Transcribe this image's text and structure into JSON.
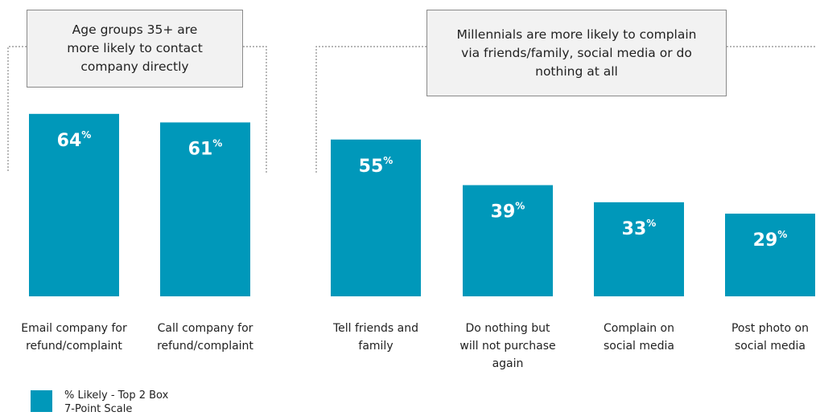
{
  "callouts": {
    "left": "Age groups 35+ are\nmore likely to contact\ncompany directly",
    "right": "Millennials are more likely to complain\nvia friends/family, social media or do\nnothing at all"
  },
  "legend": {
    "label": "% Likely - Top 2 Box\n7-Point Scale",
    "color": "#0098ba"
  },
  "chart_data": {
    "type": "bar",
    "categories": [
      "Email company for refund/complaint",
      "Call company for refund/complaint",
      "Tell friends and family",
      "Do nothing but will not purchase again",
      "Complain on social media",
      "Post photo on social media"
    ],
    "category_lines": [
      [
        "Email company for",
        "refund/complaint"
      ],
      [
        "Call company for",
        "refund/complaint"
      ],
      [
        "Tell friends and",
        "family"
      ],
      [
        "Do nothing but",
        "will not purchase",
        "again"
      ],
      [
        "Complain on",
        "social media"
      ],
      [
        "Post photo on",
        "social media"
      ]
    ],
    "values": [
      64,
      61,
      55,
      39,
      33,
      29
    ],
    "value_suffix": "%",
    "series": [
      {
        "name": "% Likely - Top 2 Box 7-Point Scale",
        "values": [
          64,
          61,
          55,
          39,
          33,
          29
        ]
      }
    ],
    "ylim": [
      0,
      70
    ],
    "grid": false,
    "legend_position": "bottom-left",
    "bar_color": "#0098ba"
  }
}
